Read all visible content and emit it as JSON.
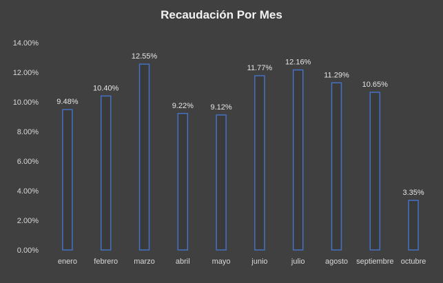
{
  "chart_data": {
    "type": "bar",
    "title": "Recaudación Por Mes",
    "xlabel": "",
    "ylabel": "",
    "categories": [
      "enero",
      "febrero",
      "marzo",
      "abril",
      "mayo",
      "junio",
      "julio",
      "agosto",
      "septiembre",
      "octubre"
    ],
    "values": [
      9.48,
      10.4,
      12.55,
      9.22,
      9.12,
      11.77,
      12.16,
      11.29,
      10.65,
      3.35
    ],
    "data_labels": [
      "9.48%",
      "10.40%",
      "12.55%",
      "9.22%",
      "9.12%",
      "11.77%",
      "12.16%",
      "11.29%",
      "10.65%",
      "3.35%"
    ],
    "ylim": [
      0,
      14
    ],
    "y_ticks": [
      0,
      2,
      4,
      6,
      8,
      10,
      12,
      14
    ],
    "y_tick_labels": [
      "0.00%",
      "2.00%",
      "4.00%",
      "6.00%",
      "8.00%",
      "10.00%",
      "12.00%",
      "14.00%"
    ],
    "grid": false,
    "legend": "none",
    "colors": {
      "background": "#404040",
      "bar_fill": "#3a3a3a",
      "bar_stroke": "#4472c4",
      "text": "#d9d9d9",
      "title": "#f2f2f2"
    }
  }
}
